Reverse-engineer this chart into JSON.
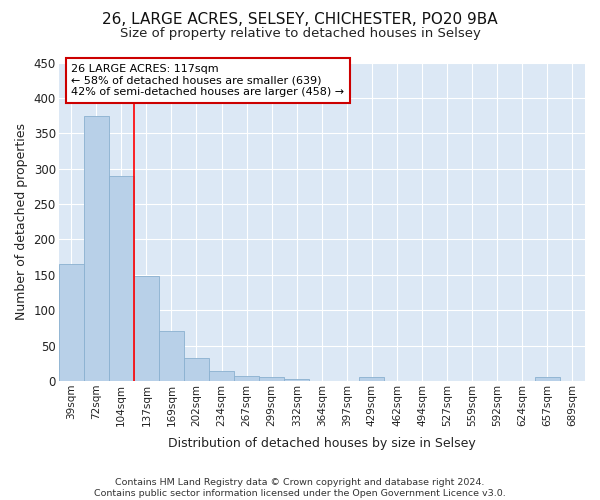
{
  "title": "26, LARGE ACRES, SELSEY, CHICHESTER, PO20 9BA",
  "subtitle": "Size of property relative to detached houses in Selsey",
  "xlabel": "Distribution of detached houses by size in Selsey",
  "ylabel": "Number of detached properties",
  "categories": [
    "39sqm",
    "72sqm",
    "104sqm",
    "137sqm",
    "169sqm",
    "202sqm",
    "234sqm",
    "267sqm",
    "299sqm",
    "332sqm",
    "364sqm",
    "397sqm",
    "429sqm",
    "462sqm",
    "494sqm",
    "527sqm",
    "559sqm",
    "592sqm",
    "624sqm",
    "657sqm",
    "689sqm"
  ],
  "values": [
    165,
    375,
    290,
    148,
    70,
    33,
    14,
    7,
    5,
    3,
    0,
    0,
    5,
    0,
    0,
    0,
    0,
    0,
    0,
    5,
    0
  ],
  "bar_color": "#b8d0e8",
  "bar_edge_color": "#8ab0d0",
  "red_line_x": 2.5,
  "annotation_text": "26 LARGE ACRES: 117sqm\n← 58% of detached houses are smaller (639)\n42% of semi-detached houses are larger (458) →",
  "annotation_box_color": "#ffffff",
  "annotation_box_edge": "#cc0000",
  "footer_text": "Contains HM Land Registry data © Crown copyright and database right 2024.\nContains public sector information licensed under the Open Government Licence v3.0.",
  "fig_background_color": "#ffffff",
  "plot_background": "#dce8f5",
  "grid_color": "#ffffff",
  "ylim": [
    0,
    450
  ],
  "yticks": [
    0,
    50,
    100,
    150,
    200,
    250,
    300,
    350,
    400,
    450
  ]
}
